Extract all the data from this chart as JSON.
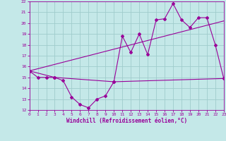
{
  "xlabel": "Windchill (Refroidissement éolien,°C)",
  "background_color": "#c4e8e8",
  "grid_color": "#a0cccc",
  "line_color": "#990099",
  "xlim": [
    0,
    23
  ],
  "ylim": [
    12,
    22
  ],
  "yticks": [
    12,
    13,
    14,
    15,
    16,
    17,
    18,
    19,
    20,
    21,
    22
  ],
  "xticks": [
    0,
    1,
    2,
    3,
    4,
    5,
    6,
    7,
    8,
    9,
    10,
    11,
    12,
    13,
    14,
    15,
    16,
    17,
    18,
    19,
    20,
    21,
    22,
    23
  ],
  "line1_x": [
    0,
    1,
    2,
    3,
    4,
    5,
    6,
    7,
    8,
    9,
    10,
    11,
    12,
    13,
    14,
    15,
    16,
    17,
    18,
    19,
    20,
    21,
    22,
    23
  ],
  "line1_y": [
    15.6,
    15.0,
    15.0,
    15.0,
    14.7,
    13.2,
    12.5,
    12.2,
    13.0,
    13.3,
    14.6,
    18.8,
    17.3,
    19.0,
    17.1,
    20.3,
    20.4,
    21.8,
    20.3,
    19.6,
    20.5,
    20.5,
    18.0,
    14.9
  ],
  "line2_x": [
    0,
    3,
    10,
    23
  ],
  "line2_y": [
    15.6,
    15.0,
    14.6,
    14.9
  ],
  "line3_x": [
    0,
    23
  ],
  "line3_y": [
    15.6,
    20.2
  ]
}
